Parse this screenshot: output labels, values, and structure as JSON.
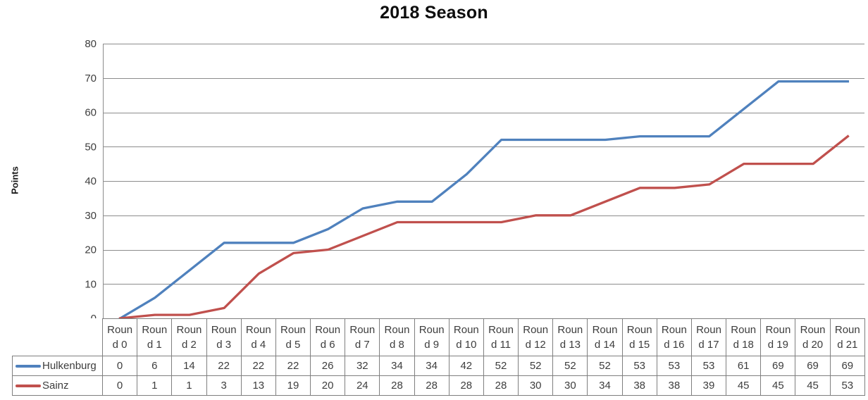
{
  "title": "2018 Season",
  "colors": {
    "background": "#FFFFFF",
    "title_text": "#0D0D0D",
    "axis_text": "#3D3D3D",
    "table_text": "#3D3D3D",
    "gridline": "#8C8C8C",
    "axis_line": "#8C8C8C",
    "table_border": "#7F7F7F",
    "hulkenburg_line": "#4F81BD",
    "sainz_line": "#C0504D"
  },
  "chart_data": {
    "type": "line",
    "title": "2018 Season",
    "xlabel": "",
    "ylabel": "Points",
    "ylim": [
      0,
      80
    ],
    "yticks": [
      0,
      10,
      20,
      30,
      40,
      50,
      60,
      70,
      80
    ],
    "grid": true,
    "legend_position": "data-table-left",
    "categories": [
      "Round 0",
      "Round 1",
      "Round 2",
      "Round 3",
      "Round 4",
      "Round 5",
      "Round 6",
      "Round 7",
      "Round 8",
      "Round 9",
      "Round 10",
      "Round 11",
      "Round 12",
      "Round 13",
      "Round 14",
      "Round 15",
      "Round 16",
      "Round 17",
      "Round 18",
      "Round 19",
      "Round 20",
      "Round 21"
    ],
    "series": [
      {
        "name": "Hulkenburg",
        "color": "#4F81BD",
        "values": [
          0,
          6,
          14,
          22,
          22,
          22,
          26,
          32,
          34,
          34,
          42,
          52,
          52,
          52,
          52,
          53,
          53,
          53,
          61,
          69,
          69,
          69
        ]
      },
      {
        "name": "Sainz",
        "color": "#C0504D",
        "values": [
          0,
          1,
          1,
          3,
          13,
          19,
          20,
          24,
          28,
          28,
          28,
          28,
          30,
          30,
          34,
          38,
          38,
          39,
          45,
          45,
          45,
          53
        ]
      }
    ]
  }
}
